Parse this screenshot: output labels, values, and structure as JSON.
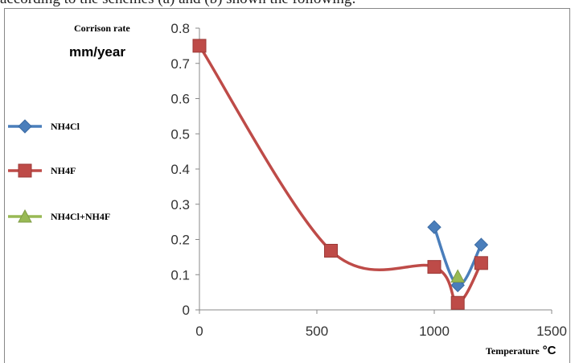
{
  "page": {
    "top_text": "according to the schemes (a) and (b) shown the following:"
  },
  "chart_data": {
    "type": "line",
    "title": "",
    "ylabel_line1": "Corrison rate",
    "ylabel_line2": "mm/year",
    "xlabel": "Temperature",
    "xlabel_unit": "°C",
    "xlim": [
      0,
      1500
    ],
    "ylim": [
      0,
      0.8
    ],
    "x_ticks": [
      0,
      500,
      1000,
      1500
    ],
    "y_ticks": [
      0,
      0.1,
      0.2,
      0.3,
      0.4,
      0.5,
      0.6,
      0.7,
      0.8
    ],
    "y_tick_labels": [
      "0",
      "0.1",
      "0.2",
      "0.3",
      "0.4",
      "0.5",
      "0.6",
      "0.7",
      "0.8"
    ],
    "x_tick_labels": [
      "0",
      "500",
      "1000",
      "1500"
    ],
    "legend_position": "left",
    "grid": false,
    "series": [
      {
        "name": "NH4Cl",
        "color": "#4a7ebb",
        "marker": "diamond",
        "x": [
          1000,
          1100,
          1200
        ],
        "y": [
          0.235,
          0.07,
          0.185
        ]
      },
      {
        "name": "NH4F",
        "color": "#be4b48",
        "marker": "square",
        "x": [
          0,
          560,
          1000,
          1100,
          1200
        ],
        "y": [
          0.75,
          0.168,
          0.122,
          0.02,
          0.133
        ]
      },
      {
        "name": "NH4Cl+NH4F",
        "color": "#98b954",
        "marker": "triangle",
        "x": [
          1100
        ],
        "y": [
          0.095
        ]
      }
    ]
  }
}
